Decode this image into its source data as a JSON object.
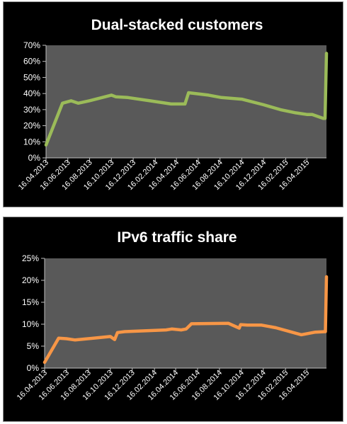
{
  "chart_data": [
    {
      "type": "line",
      "title": "Dual-stacked customers",
      "xlabel": "",
      "ylabel": "",
      "ylim": [
        0,
        70
      ],
      "y_ticks": [
        0,
        10,
        20,
        30,
        40,
        50,
        60,
        70
      ],
      "y_tick_labels": [
        "0%",
        "10%",
        "20%",
        "30%",
        "40%",
        "50%",
        "60%",
        "70%"
      ],
      "x_tick_labels": [
        "16.04.2013",
        "16.06.2013",
        "16.08.2013",
        "16.10.2013",
        "16.12.2013",
        "16.02.2014",
        "16.04.2014",
        "16.06.2014",
        "16.08.2014",
        "16.10.2014",
        "16.12.2014",
        "16.02.2015",
        "16.04.2015"
      ],
      "x_range": [
        "2013-04-16",
        "2015-06-10"
      ],
      "plot_background": "#595959",
      "grid": false,
      "legend": "none",
      "series": [
        {
          "color": "#9bbb59",
          "points": [
            [
              "2013-04-16",
              8
            ],
            [
              "2013-06-01",
              34
            ],
            [
              "2013-06-25",
              35.5
            ],
            [
              "2013-07-15",
              34
            ],
            [
              "2013-08-15",
              35.5
            ],
            [
              "2013-10-16",
              39
            ],
            [
              "2013-10-28",
              38
            ],
            [
              "2013-12-01",
              37.5
            ],
            [
              "2014-02-01",
              35.5
            ],
            [
              "2014-04-01",
              33.5
            ],
            [
              "2014-05-10",
              33.5
            ],
            [
              "2014-05-20",
              40.5
            ],
            [
              "2014-07-15",
              39
            ],
            [
              "2014-08-20",
              37.5
            ],
            [
              "2014-10-16",
              36.5
            ],
            [
              "2014-12-16",
              33
            ],
            [
              "2015-02-01",
              30
            ],
            [
              "2015-03-16",
              28
            ],
            [
              "2015-04-16",
              27
            ],
            [
              "2015-05-01",
              27
            ],
            [
              "2015-06-01",
              24.5
            ],
            [
              "2015-06-06",
              24.5
            ],
            [
              "2015-06-10",
              65
            ]
          ]
        }
      ]
    },
    {
      "type": "line",
      "title": "IPv6 traffic share",
      "xlabel": "",
      "ylabel": "",
      "ylim": [
        0,
        25
      ],
      "y_ticks": [
        0,
        5,
        10,
        15,
        20,
        25
      ],
      "y_tick_labels": [
        "0%",
        "5%",
        "10%",
        "15%",
        "20%",
        "25%"
      ],
      "x_tick_labels": [
        "16.04.2013",
        "16.06.2013",
        "16.08.2013",
        "16.10.2013",
        "16.12.2013",
        "16.02.2014",
        "16.04.2014",
        "16.06.2014",
        "16.08.2014",
        "16.10.2014",
        "16.12.2014",
        "16.02.2015",
        "16.04.2015"
      ],
      "x_range": [
        "2013-04-16",
        "2015-06-10"
      ],
      "plot_background": "#595959",
      "grid": false,
      "legend": "none",
      "series": [
        {
          "color": "#f79646",
          "points": [
            [
              "2013-04-16",
              1.3
            ],
            [
              "2013-05-25",
              6.8
            ],
            [
              "2013-06-16",
              6.7
            ],
            [
              "2013-07-10",
              6.4
            ],
            [
              "2013-10-16",
              7.2
            ],
            [
              "2013-10-28",
              6.5
            ],
            [
              "2013-11-05",
              8.1
            ],
            [
              "2013-11-25",
              8.3
            ],
            [
              "2014-03-20",
              8.7
            ],
            [
              "2014-04-05",
              8.9
            ],
            [
              "2014-05-01",
              8.7
            ],
            [
              "2014-05-15",
              8.9
            ],
            [
              "2014-05-30",
              10.1
            ],
            [
              "2014-09-10",
              10.2
            ],
            [
              "2014-10-10",
              9.1
            ],
            [
              "2014-10-14",
              9.9
            ],
            [
              "2014-11-01",
              9.8
            ],
            [
              "2014-12-10",
              9.8
            ],
            [
              "2015-01-20",
              9.2
            ],
            [
              "2015-04-01",
              7.6
            ],
            [
              "2015-05-10",
              8.2
            ],
            [
              "2015-06-07",
              8.3
            ],
            [
              "2015-06-10",
              20.8
            ]
          ]
        }
      ]
    }
  ]
}
